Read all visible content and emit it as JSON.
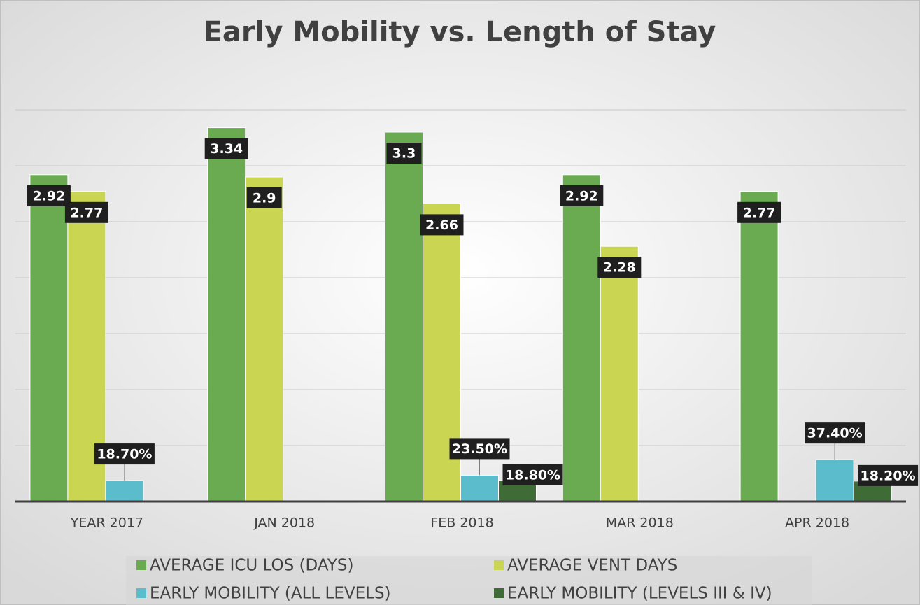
{
  "chart_data": {
    "type": "bar",
    "title": "Early Mobility vs. Length of Stay",
    "categories": [
      "YEAR 2017",
      "JAN 2018",
      "FEB 2018",
      "MAR 2018",
      "APR 2018"
    ],
    "series": [
      {
        "name": "AVERAGE ICU LOS (DAYS)",
        "color": "#6aab52",
        "values": [
          2.92,
          3.34,
          3.3,
          2.92,
          2.77
        ],
        "value_labels": [
          "2.92",
          "3.34",
          "3.3",
          "2.92",
          "2.77"
        ]
      },
      {
        "name": "AVERAGE VENT DAYS",
        "color": "#cad652",
        "values": [
          2.77,
          2.9,
          2.66,
          2.28,
          null
        ],
        "value_labels": [
          "2.77",
          "2.9",
          "2.66",
          "2.28",
          null
        ]
      },
      {
        "name": "EARLY MOBILITY (ALL LEVELS)",
        "color": "#5bbccb",
        "values": [
          0.187,
          null,
          0.235,
          null,
          0.374
        ],
        "value_labels": [
          "18.70%",
          null,
          "23.50%",
          null,
          "37.40%"
        ]
      },
      {
        "name": "EARLY MOBILITY (LEVELS III & IV)",
        "color": "#3e6b36",
        "values": [
          null,
          null,
          0.188,
          null,
          0.182
        ],
        "value_labels": [
          null,
          null,
          "18.80%",
          null,
          "18.20%"
        ]
      }
    ],
    "ylim": [
      0,
      3.5
    ],
    "yticks": [
      0,
      0.5,
      1,
      1.5,
      2,
      2.5,
      3,
      3.5
    ],
    "grid": true
  }
}
